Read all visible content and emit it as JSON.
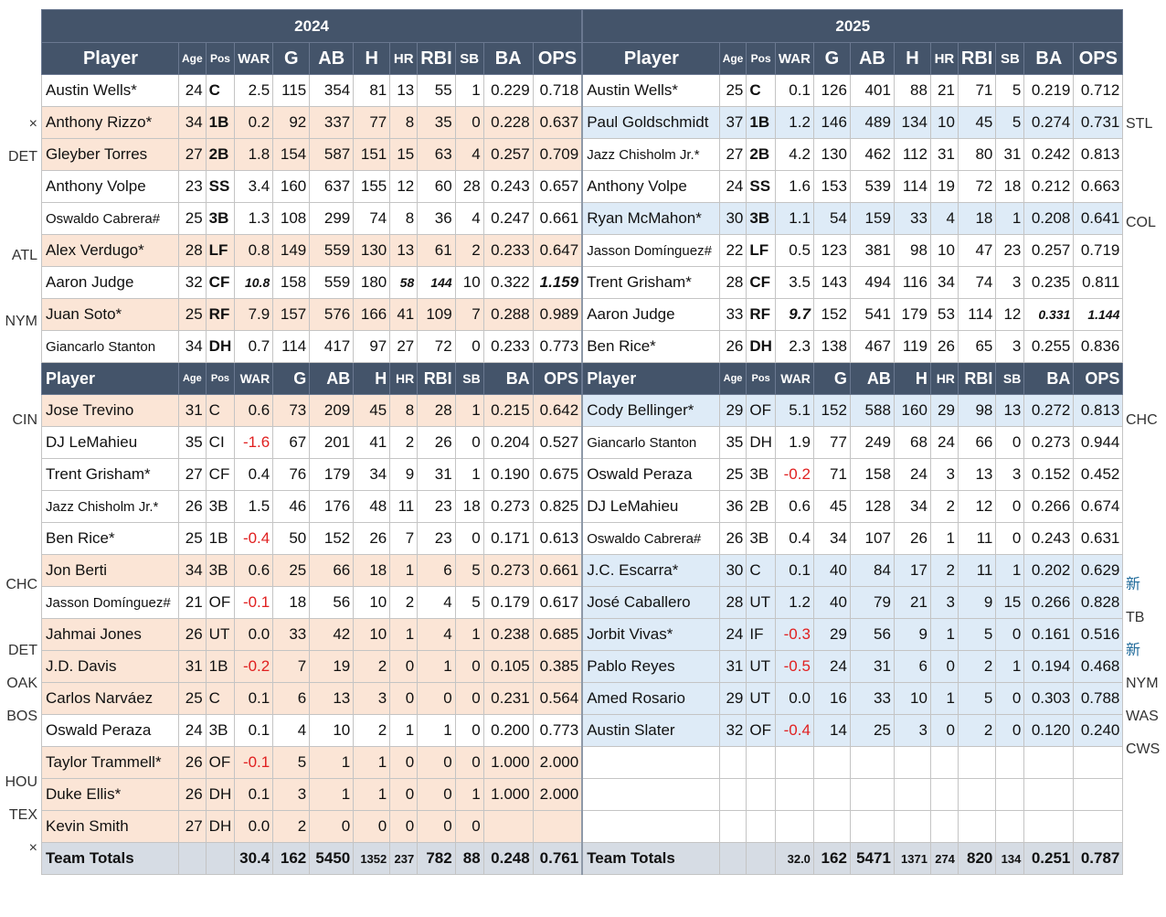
{
  "years": [
    "2024",
    "2025"
  ],
  "headers": [
    "Player",
    "Age",
    "Pos",
    "WAR",
    "G",
    "AB",
    "H",
    "HR",
    "RBI",
    "SB",
    "BA",
    "OPS"
  ],
  "starters": [
    {
      "left": "",
      "right": "",
      "a": {
        "player": "Austin Wells*",
        "age": "24",
        "pos": "C",
        "war": "2.5",
        "g": "115",
        "ab": "354",
        "h": "81",
        "hr": "13",
        "rbi": "55",
        "sb": "1",
        "ba": "0.229",
        "ops": "0.718"
      },
      "b": {
        "player": "Austin Wells*",
        "age": "25",
        "pos": "C",
        "war": "0.1",
        "g": "126",
        "ab": "401",
        "h": "88",
        "hr": "21",
        "rbi": "71",
        "sb": "5",
        "ba": "0.219",
        "ops": "0.712"
      }
    },
    {
      "left": "×",
      "right": "STL",
      "a": {
        "player": "Anthony Rizzo*",
        "age": "34",
        "pos": "1B",
        "war": "0.2",
        "g": "92",
        "ab": "337",
        "h": "77",
        "hr": "8",
        "rbi": "35",
        "sb": "0",
        "ba": "0.228",
        "ops": "0.637"
      },
      "b": {
        "player": "Paul Goldschmidt",
        "age": "37",
        "pos": "1B",
        "war": "1.2",
        "g": "146",
        "ab": "489",
        "h": "134",
        "hr": "10",
        "rbi": "45",
        "sb": "5",
        "ba": "0.274",
        "ops": "0.731"
      }
    },
    {
      "left": "DET",
      "right": "",
      "a": {
        "player": "Gleyber Torres",
        "age": "27",
        "pos": "2B",
        "war": "1.8",
        "g": "154",
        "ab": "587",
        "h": "151",
        "hr": "15",
        "rbi": "63",
        "sb": "4",
        "ba": "0.257",
        "ops": "0.709"
      },
      "b": {
        "player": "Jazz Chisholm Jr.*",
        "age": "27",
        "pos": "2B",
        "war": "4.2",
        "g": "130",
        "ab": "462",
        "h": "112",
        "hr": "31",
        "rbi": "80",
        "sb": "31",
        "ba": "0.242",
        "ops": "0.813"
      }
    },
    {
      "left": "",
      "right": "",
      "a": {
        "player": "Anthony Volpe",
        "age": "23",
        "pos": "SS",
        "war": "3.4",
        "g": "160",
        "ab": "637",
        "h": "155",
        "hr": "12",
        "rbi": "60",
        "sb": "28",
        "ba": "0.243",
        "ops": "0.657"
      },
      "b": {
        "player": "Anthony Volpe",
        "age": "24",
        "pos": "SS",
        "war": "1.6",
        "g": "153",
        "ab": "539",
        "h": "114",
        "hr": "19",
        "rbi": "72",
        "sb": "18",
        "ba": "0.212",
        "ops": "0.663"
      }
    },
    {
      "left": "",
      "right": "COL",
      "a": {
        "player": "Oswaldo Cabrera#",
        "age": "25",
        "pos": "3B",
        "war": "1.3",
        "g": "108",
        "ab": "299",
        "h": "74",
        "hr": "8",
        "rbi": "36",
        "sb": "4",
        "ba": "0.247",
        "ops": "0.661"
      },
      "b": {
        "player": "Ryan McMahon*",
        "age": "30",
        "pos": "3B",
        "war": "1.1",
        "g": "54",
        "ab": "159",
        "h": "33",
        "hr": "4",
        "rbi": "18",
        "sb": "1",
        "ba": "0.208",
        "ops": "0.641"
      }
    },
    {
      "left": "ATL",
      "right": "",
      "a": {
        "player": "Alex Verdugo*",
        "age": "28",
        "pos": "LF",
        "war": "0.8",
        "g": "149",
        "ab": "559",
        "h": "130",
        "hr": "13",
        "rbi": "61",
        "sb": "2",
        "ba": "0.233",
        "ops": "0.647"
      },
      "b": {
        "player": "Jasson Domínguez#",
        "age": "22",
        "pos": "LF",
        "war": "0.5",
        "g": "123",
        "ab": "381",
        "h": "98",
        "hr": "10",
        "rbi": "47",
        "sb": "23",
        "ba": "0.257",
        "ops": "0.719"
      }
    },
    {
      "left": "",
      "right": "",
      "a": {
        "player": "Aaron Judge",
        "age": "32",
        "pos": "CF",
        "war": "10.8",
        "g": "158",
        "ab": "559",
        "h": "180",
        "hr": "58",
        "rbi": "144",
        "sb": "10",
        "ba": "0.322",
        "ops": "1.159"
      },
      "b": {
        "player": "Trent Grisham*",
        "age": "28",
        "pos": "CF",
        "war": "3.5",
        "g": "143",
        "ab": "494",
        "h": "116",
        "hr": "34",
        "rbi": "74",
        "sb": "3",
        "ba": "0.235",
        "ops": "0.811"
      }
    },
    {
      "left": "NYM",
      "right": "",
      "a": {
        "player": "Juan Soto*",
        "age": "25",
        "pos": "RF",
        "war": "7.9",
        "g": "157",
        "ab": "576",
        "h": "166",
        "hr": "41",
        "rbi": "109",
        "sb": "7",
        "ba": "0.288",
        "ops": "0.989"
      },
      "b": {
        "player": "Aaron Judge",
        "age": "33",
        "pos": "RF",
        "war": "9.7",
        "g": "152",
        "ab": "541",
        "h": "179",
        "hr": "53",
        "rbi": "114",
        "sb": "12",
        "ba": "0.331",
        "ops": "1.144"
      }
    },
    {
      "left": "",
      "right": "",
      "a": {
        "player": "Giancarlo Stanton",
        "age": "34",
        "pos": "DH",
        "war": "0.7",
        "g": "114",
        "ab": "417",
        "h": "97",
        "hr": "27",
        "rbi": "72",
        "sb": "0",
        "ba": "0.233",
        "ops": "0.773"
      },
      "b": {
        "player": "Ben Rice*",
        "age": "26",
        "pos": "DH",
        "war": "2.3",
        "g": "138",
        "ab": "467",
        "h": "119",
        "hr": "26",
        "rbi": "65",
        "sb": "3",
        "ba": "0.255",
        "ops": "0.836"
      }
    }
  ],
  "bench": [
    {
      "left": "CIN",
      "right": "CHC",
      "a": {
        "player": "Jose Trevino",
        "age": "31",
        "pos": "C",
        "war": "0.6",
        "g": "73",
        "ab": "209",
        "h": "45",
        "hr": "8",
        "rbi": "28",
        "sb": "1",
        "ba": "0.215",
        "ops": "0.642"
      },
      "b": {
        "player": "Cody Bellinger*",
        "age": "29",
        "pos": "OF",
        "war": "5.1",
        "g": "152",
        "ab": "588",
        "h": "160",
        "hr": "29",
        "rbi": "98",
        "sb": "13",
        "ba": "0.272",
        "ops": "0.813"
      }
    },
    {
      "left": "",
      "right": "",
      "a": {
        "player": "DJ LeMahieu",
        "age": "35",
        "pos": "CI",
        "war": "-1.6",
        "g": "67",
        "ab": "201",
        "h": "41",
        "hr": "2",
        "rbi": "26",
        "sb": "0",
        "ba": "0.204",
        "ops": "0.527"
      },
      "b": {
        "player": "Giancarlo Stanton",
        "age": "35",
        "pos": "DH",
        "war": "1.9",
        "g": "77",
        "ab": "249",
        "h": "68",
        "hr": "24",
        "rbi": "66",
        "sb": "0",
        "ba": "0.273",
        "ops": "0.944"
      }
    },
    {
      "left": "",
      "right": "",
      "a": {
        "player": "Trent Grisham*",
        "age": "27",
        "pos": "CF",
        "war": "0.4",
        "g": "76",
        "ab": "179",
        "h": "34",
        "hr": "9",
        "rbi": "31",
        "sb": "1",
        "ba": "0.190",
        "ops": "0.675"
      },
      "b": {
        "player": "Oswald Peraza",
        "age": "25",
        "pos": "3B",
        "war": "-0.2",
        "g": "71",
        "ab": "158",
        "h": "24",
        "hr": "3",
        "rbi": "13",
        "sb": "3",
        "ba": "0.152",
        "ops": "0.452"
      }
    },
    {
      "left": "",
      "right": "",
      "a": {
        "player": "Jazz Chisholm Jr.*",
        "age": "26",
        "pos": "3B",
        "war": "1.5",
        "g": "46",
        "ab": "176",
        "h": "48",
        "hr": "11",
        "rbi": "23",
        "sb": "18",
        "ba": "0.273",
        "ops": "0.825"
      },
      "b": {
        "player": "DJ LeMahieu",
        "age": "36",
        "pos": "2B",
        "war": "0.6",
        "g": "45",
        "ab": "128",
        "h": "34",
        "hr": "2",
        "rbi": "12",
        "sb": "0",
        "ba": "0.266",
        "ops": "0.674"
      }
    },
    {
      "left": "",
      "right": "",
      "a": {
        "player": "Ben Rice*",
        "age": "25",
        "pos": "1B",
        "war": "-0.4",
        "g": "50",
        "ab": "152",
        "h": "26",
        "hr": "7",
        "rbi": "23",
        "sb": "0",
        "ba": "0.171",
        "ops": "0.613"
      },
      "b": {
        "player": "Oswaldo Cabrera#",
        "age": "26",
        "pos": "3B",
        "war": "0.4",
        "g": "34",
        "ab": "107",
        "h": "26",
        "hr": "1",
        "rbi": "11",
        "sb": "0",
        "ba": "0.243",
        "ops": "0.631"
      }
    },
    {
      "left": "CHC",
      "right": "新",
      "a": {
        "player": "Jon Berti",
        "age": "34",
        "pos": "3B",
        "war": "0.6",
        "g": "25",
        "ab": "66",
        "h": "18",
        "hr": "1",
        "rbi": "6",
        "sb": "5",
        "ba": "0.273",
        "ops": "0.661"
      },
      "b": {
        "player": "J.C. Escarra*",
        "age": "30",
        "pos": "C",
        "war": "0.1",
        "g": "40",
        "ab": "84",
        "h": "17",
        "hr": "2",
        "rbi": "11",
        "sb": "1",
        "ba": "0.202",
        "ops": "0.629"
      }
    },
    {
      "left": "",
      "right": "TB",
      "a": {
        "player": "Jasson Domínguez#",
        "age": "21",
        "pos": "OF",
        "war": "-0.1",
        "g": "18",
        "ab": "56",
        "h": "10",
        "hr": "2",
        "rbi": "4",
        "sb": "5",
        "ba": "0.179",
        "ops": "0.617"
      },
      "b": {
        "player": "José Caballero",
        "age": "28",
        "pos": "UT",
        "war": "1.2",
        "g": "40",
        "ab": "79",
        "h": "21",
        "hr": "3",
        "rbi": "9",
        "sb": "15",
        "ba": "0.266",
        "ops": "0.828"
      }
    },
    {
      "left": "DET",
      "right": "新",
      "a": {
        "player": "Jahmai Jones",
        "age": "26",
        "pos": "UT",
        "war": "0.0",
        "g": "33",
        "ab": "42",
        "h": "10",
        "hr": "1",
        "rbi": "4",
        "sb": "1",
        "ba": "0.238",
        "ops": "0.685"
      },
      "b": {
        "player": "Jorbit Vivas*",
        "age": "24",
        "pos": "IF",
        "war": "-0.3",
        "g": "29",
        "ab": "56",
        "h": "9",
        "hr": "1",
        "rbi": "5",
        "sb": "0",
        "ba": "0.161",
        "ops": "0.516"
      }
    },
    {
      "left": "OAK",
      "right": "NYM",
      "a": {
        "player": "J.D. Davis",
        "age": "31",
        "pos": "1B",
        "war": "-0.2",
        "g": "7",
        "ab": "19",
        "h": "2",
        "hr": "0",
        "rbi": "1",
        "sb": "0",
        "ba": "0.105",
        "ops": "0.385"
      },
      "b": {
        "player": "Pablo Reyes",
        "age": "31",
        "pos": "UT",
        "war": "-0.5",
        "g": "24",
        "ab": "31",
        "h": "6",
        "hr": "0",
        "rbi": "2",
        "sb": "1",
        "ba": "0.194",
        "ops": "0.468"
      }
    },
    {
      "left": "BOS",
      "right": "WAS",
      "a": {
        "player": "Carlos Narváez",
        "age": "25",
        "pos": "C",
        "war": "0.1",
        "g": "6",
        "ab": "13",
        "h": "3",
        "hr": "0",
        "rbi": "0",
        "sb": "0",
        "ba": "0.231",
        "ops": "0.564"
      },
      "b": {
        "player": "Amed Rosario",
        "age": "29",
        "pos": "UT",
        "war": "0.0",
        "g": "16",
        "ab": "33",
        "h": "10",
        "hr": "1",
        "rbi": "5",
        "sb": "0",
        "ba": "0.303",
        "ops": "0.788"
      }
    },
    {
      "left": "",
      "right": "CWS",
      "a": {
        "player": "Oswald Peraza",
        "age": "24",
        "pos": "3B",
        "war": "0.1",
        "g": "4",
        "ab": "10",
        "h": "2",
        "hr": "1",
        "rbi": "1",
        "sb": "0",
        "ba": "0.200",
        "ops": "0.773"
      },
      "b": {
        "player": "Austin Slater",
        "age": "32",
        "pos": "OF",
        "war": "-0.4",
        "g": "14",
        "ab": "25",
        "h": "3",
        "hr": "0",
        "rbi": "2",
        "sb": "0",
        "ba": "0.120",
        "ops": "0.240"
      }
    },
    {
      "left": "HOU",
      "right": "",
      "a": {
        "player": "Taylor Trammell*",
        "age": "26",
        "pos": "OF",
        "war": "-0.1",
        "g": "5",
        "ab": "1",
        "h": "1",
        "hr": "0",
        "rbi": "0",
        "sb": "0",
        "ba": "1.000",
        "ops": "2.000"
      },
      "b": null
    },
    {
      "left": "TEX",
      "right": "",
      "a": {
        "player": "Duke Ellis*",
        "age": "26",
        "pos": "DH",
        "war": "0.1",
        "g": "3",
        "ab": "1",
        "h": "1",
        "hr": "0",
        "rbi": "0",
        "sb": "1",
        "ba": "1.000",
        "ops": "2.000"
      },
      "b": null
    },
    {
      "left": "×",
      "right": "",
      "a": {
        "player": "Kevin Smith",
        "age": "27",
        "pos": "DH",
        "war": "0.0",
        "g": "2",
        "ab": "0",
        "h": "0",
        "hr": "0",
        "rbi": "0",
        "sb": "0",
        "ba": "",
        "ops": ""
      },
      "b": null
    }
  ],
  "totals": {
    "a": {
      "player": "Team Totals",
      "age": "",
      "pos": "",
      "war": "30.4",
      "g": "162",
      "ab": "5450",
      "h": "1352",
      "hr": "237",
      "rbi": "782",
      "sb": "88",
      "ba": "0.248",
      "ops": "0.761"
    },
    "b": {
      "player": "Team Totals",
      "age": "",
      "pos": "",
      "war": "32.0",
      "g": "162",
      "ab": "5471",
      "h": "1371",
      "hr": "274",
      "rbi": "820",
      "sb": "134",
      "ba": "0.251",
      "ops": "0.787"
    }
  },
  "colors": {
    "header": "#44546a",
    "departed": "#fbe5d6",
    "arrived": "#deebf7",
    "totals": "#d6dce4",
    "negative": "#e02020"
  }
}
